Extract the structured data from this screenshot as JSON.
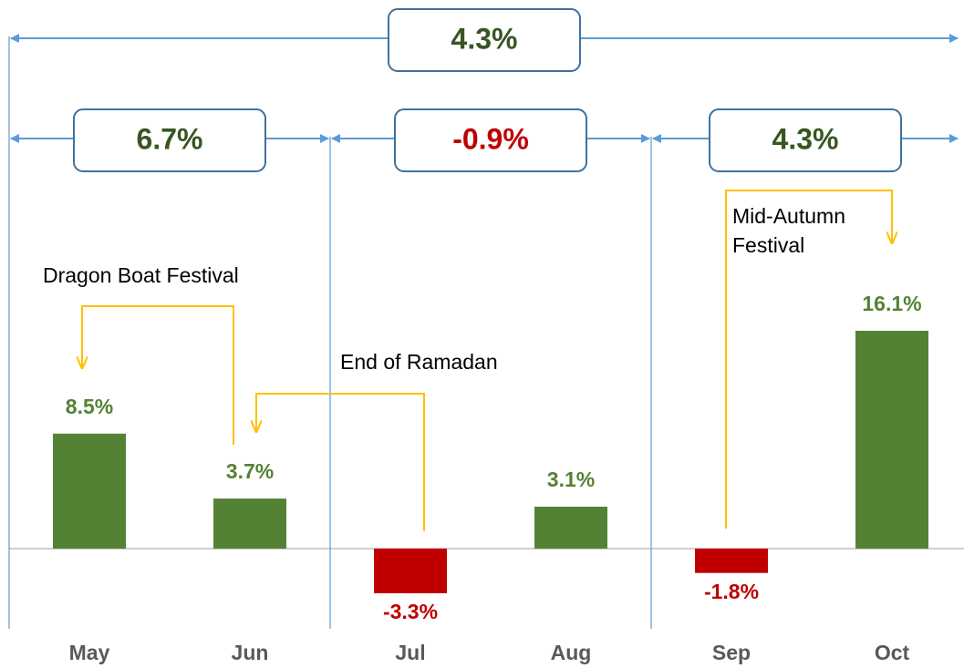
{
  "chart_data": {
    "type": "bar",
    "categories": [
      "May",
      "Jun",
      "Jul",
      "Aug",
      "Sep",
      "Oct"
    ],
    "values": [
      8.5,
      3.7,
      -3.3,
      3.1,
      -1.8,
      16.1
    ],
    "value_labels": [
      "8.5%",
      "3.7%",
      "-3.3%",
      "3.1%",
      "-1.8%",
      "16.1%"
    ],
    "colors": [
      "#548235",
      "#548235",
      "#c00000",
      "#548235",
      "#c00000",
      "#548235"
    ],
    "periods": [
      {
        "from": "May",
        "to": "Oct",
        "value": 4.3,
        "value_label": "4.3%",
        "color": "#375623"
      },
      {
        "from": "May",
        "to": "Jun",
        "value": 6.7,
        "value_label": "6.7%",
        "color": "#375623"
      },
      {
        "from": "Jul",
        "to": "Aug",
        "value": -0.9,
        "value_label": "-0.9%",
        "color": "#c00000"
      },
      {
        "from": "Sep",
        "to": "Oct",
        "value": 4.3,
        "value_label": "4.3%",
        "color": "#375623"
      }
    ],
    "annotations": [
      {
        "text": "Dragon Boat Festival",
        "from": "Jun",
        "to": "May"
      },
      {
        "text": "End of Ramadan",
        "from": "Jul",
        "to": "Jun"
      },
      {
        "text": "Mid-Autumn Festival",
        "from": "Sep",
        "to": "Oct"
      }
    ]
  }
}
